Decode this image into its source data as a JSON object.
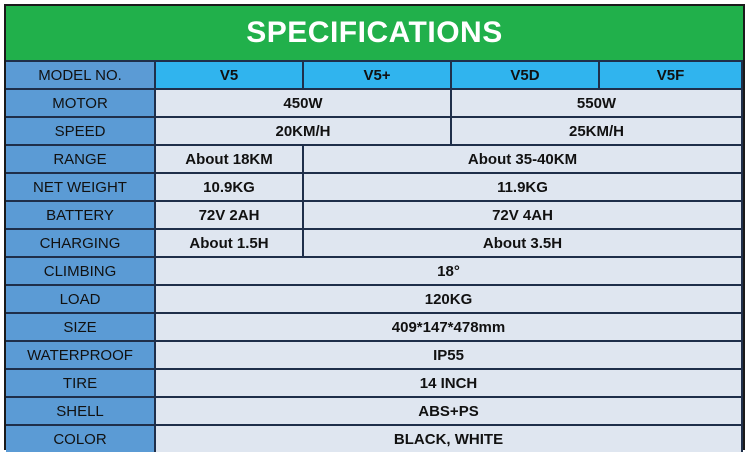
{
  "title": "SPECIFICATIONS",
  "header": {
    "label": "MODEL NO.",
    "models": [
      "V5",
      "V5+",
      "V5D",
      "V5F"
    ]
  },
  "rows": {
    "motor": {
      "label": "MOTOR",
      "values": [
        "450W",
        "550W"
      ]
    },
    "speed": {
      "label": "SPEED",
      "values": [
        "20KM/H",
        "25KM/H"
      ]
    },
    "range": {
      "label": "RANGE",
      "values": [
        "About 18KM",
        "About 35-40KM"
      ]
    },
    "weight": {
      "label": "NET  WEIGHT",
      "values": [
        "10.9KG",
        "11.9KG"
      ]
    },
    "battery": {
      "label": "BATTERY",
      "values": [
        "72V 2AH",
        "72V 4AH"
      ]
    },
    "charging": {
      "label": "CHARGING",
      "values": [
        "About 1.5H",
        "About 3.5H"
      ]
    },
    "climbing": {
      "label": "CLIMBING",
      "values": [
        "18°"
      ]
    },
    "load": {
      "label": "LOAD",
      "values": [
        "120KG"
      ]
    },
    "size": {
      "label": "SIZE",
      "values": [
        "409*147*478mm"
      ]
    },
    "waterproof": {
      "label": "WATERPROOF",
      "values": [
        "IP55"
      ]
    },
    "tire": {
      "label": "TIRE",
      "values": [
        "14 INCH"
      ]
    },
    "shell": {
      "label": "SHELL",
      "values": [
        "ABS+PS"
      ]
    },
    "color": {
      "label": "COLOR",
      "values": [
        "BLACK, WHITE"
      ]
    }
  }
}
